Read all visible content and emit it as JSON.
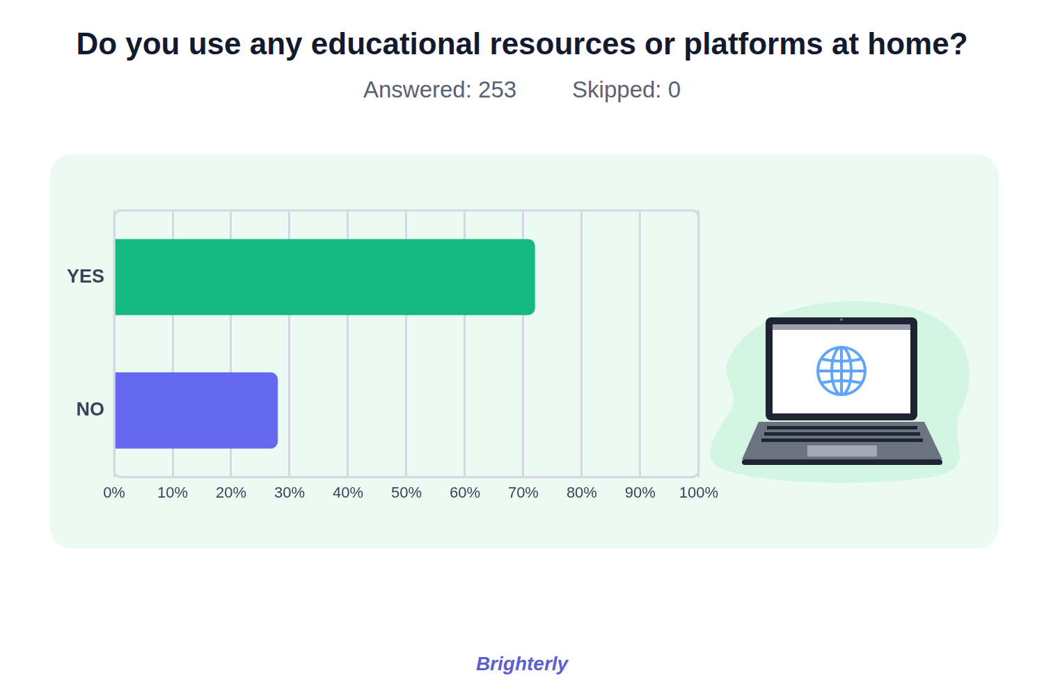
{
  "chart_data": {
    "type": "bar",
    "orientation": "horizontal",
    "title": "Do you use any educational resources or platforms at home?",
    "subtitle": [
      "Answered: 253",
      "Skipped: 0"
    ],
    "categories": [
      "YES",
      "NO"
    ],
    "values": [
      72,
      28
    ],
    "colors": [
      "#13b981",
      "#6469f0"
    ],
    "xlim": [
      0,
      100
    ],
    "xticks": [
      {
        "value": 0,
        "label": "0%"
      },
      {
        "value": 10,
        "label": "10%"
      },
      {
        "value": 20,
        "label": "20%"
      },
      {
        "value": 30,
        "label": "30%"
      },
      {
        "value": 40,
        "label": "40%"
      },
      {
        "value": 50,
        "label": "50%"
      },
      {
        "value": 60,
        "label": "60%"
      },
      {
        "value": 70,
        "label": "70%"
      },
      {
        "value": 80,
        "label": "80%"
      },
      {
        "value": 90,
        "label": "90%"
      },
      {
        "value": 100,
        "label": "100%"
      }
    ],
    "grid": true
  },
  "footer": "Brighterly"
}
